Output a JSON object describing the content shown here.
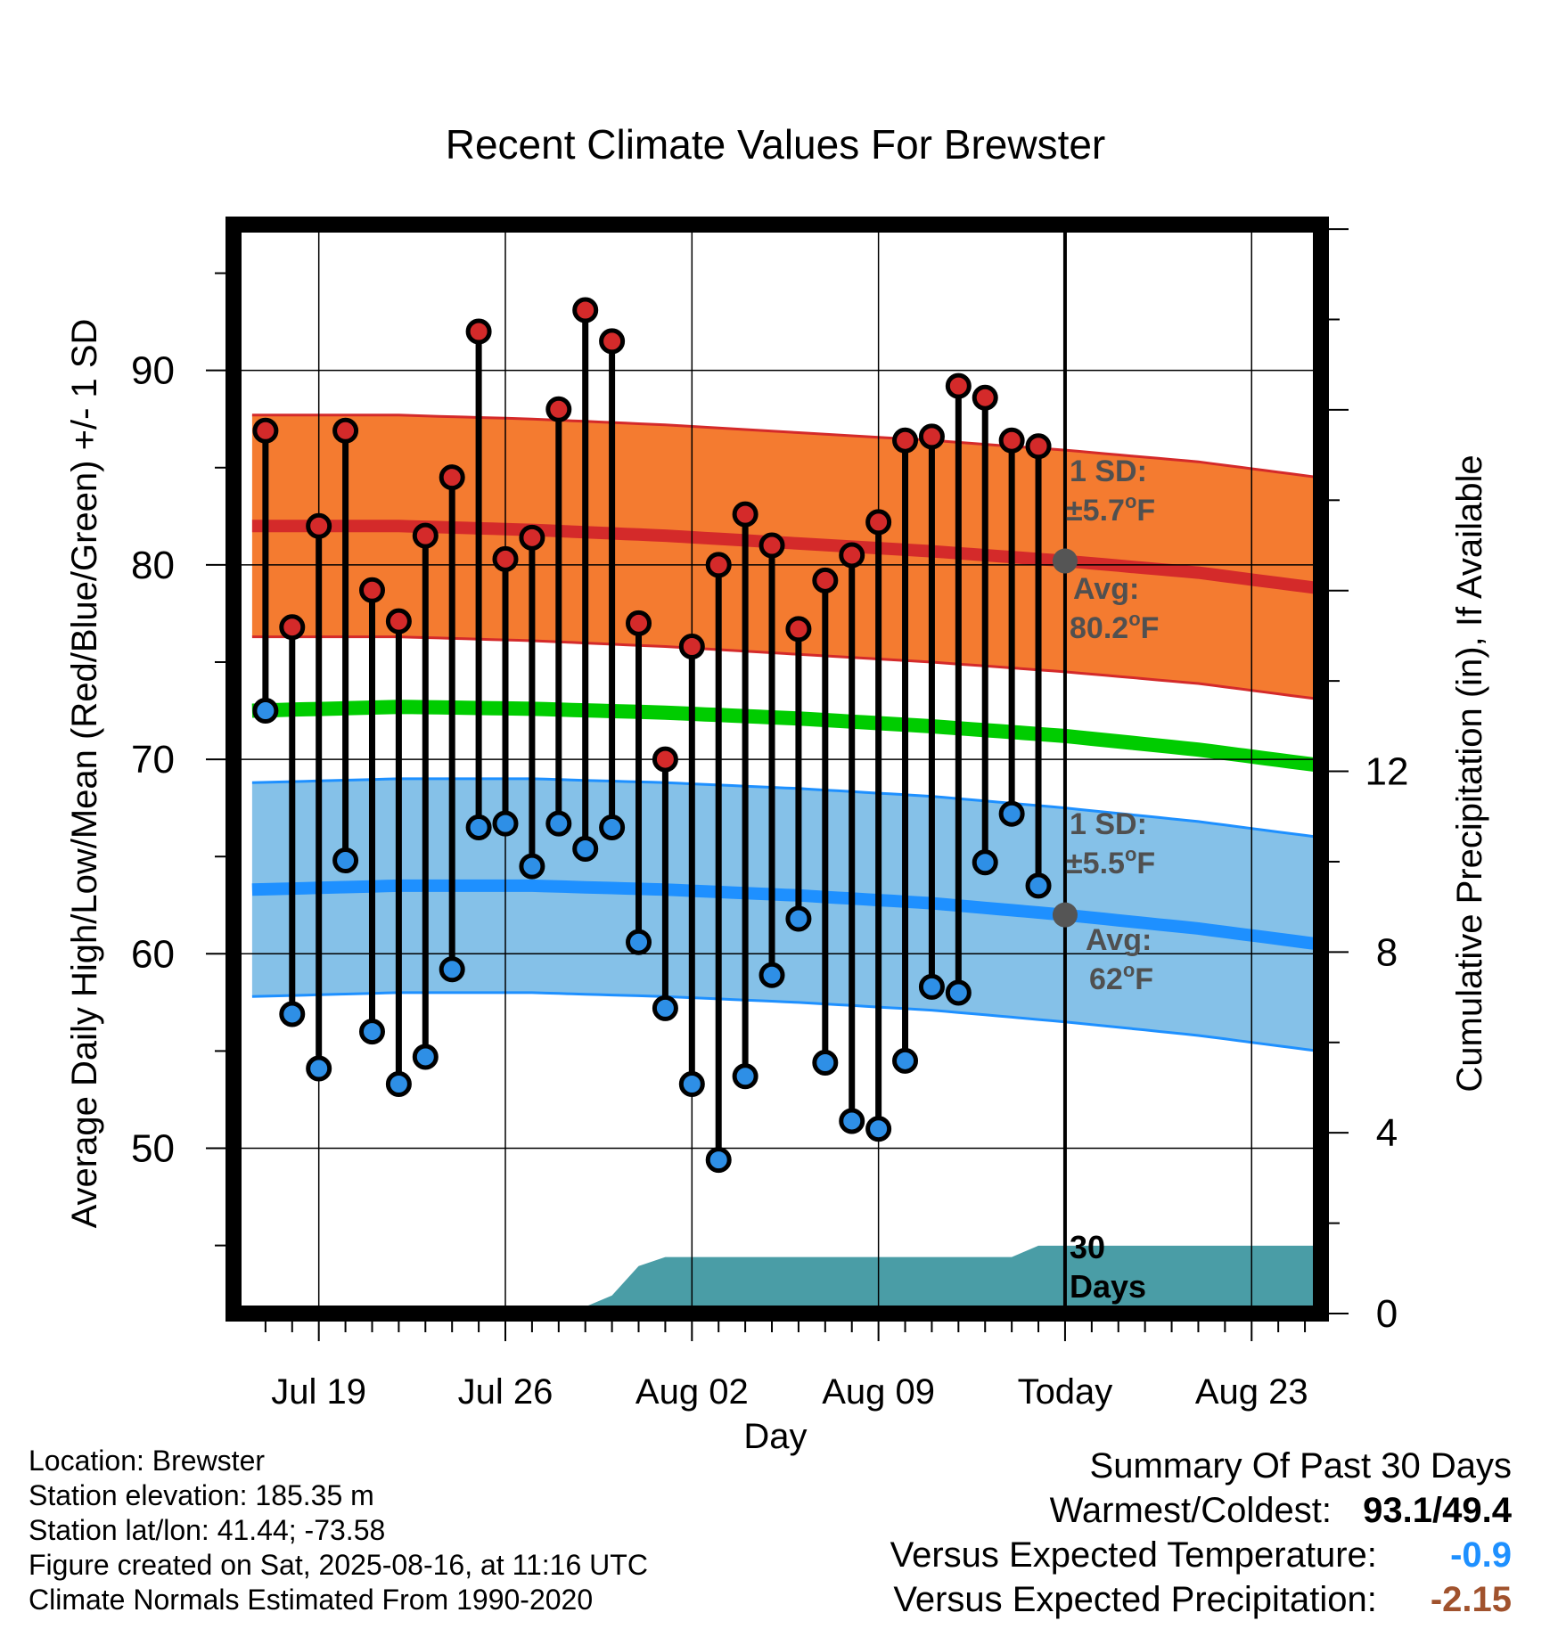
{
  "chart_data": {
    "type": "line",
    "title": "Recent Climate Values For Brewster",
    "xlabel": "Day",
    "ylabel": "Average Daily High/Low/Mean (Red/Blue/Green) +/- 1 SD",
    "y2label": "Cumulative Precipitation (in), If Available",
    "x_ticks": [
      "Jul 19",
      "Jul 26",
      "Aug 02",
      "Aug 09",
      "Today",
      "Aug 23"
    ],
    "y_ticks": [
      "50",
      "60",
      "70",
      "80",
      "90"
    ],
    "y2_ticks": [
      "0",
      "4",
      "8",
      "12"
    ],
    "ylim": [
      41.5,
      97.5
    ],
    "y2lim": [
      0,
      24.1
    ],
    "xlim": [
      -3.2,
      37.6
    ],
    "today_day": 28,
    "days": [
      -2,
      -1,
      0,
      1,
      2,
      3,
      4,
      5,
      6,
      7,
      8,
      9,
      10,
      11,
      12,
      13,
      14,
      15,
      16,
      17,
      18,
      19,
      20,
      21,
      22,
      23,
      24,
      25,
      26,
      27
    ],
    "highs": [
      86.9,
      76.8,
      82.0,
      86.9,
      78.7,
      77.1,
      81.5,
      84.5,
      92.0,
      80.3,
      81.4,
      88.0,
      93.1,
      91.5,
      77.0,
      70.0,
      75.8,
      80.0,
      82.6,
      81.0,
      76.7,
      79.2,
      80.5,
      82.2,
      86.4,
      86.6,
      89.2,
      88.6,
      86.4,
      86.1
    ],
    "lows": [
      72.5,
      56.9,
      54.1,
      64.8,
      56.0,
      53.3,
      54.7,
      59.2,
      66.5,
      66.7,
      64.5,
      66.7,
      65.4,
      66.5,
      60.6,
      57.2,
      53.3,
      49.4,
      53.7,
      58.9,
      61.8,
      54.4,
      51.4,
      51.0,
      54.5,
      58.3,
      58.0,
      64.7,
      67.2,
      63.5
    ],
    "normal_high_x": [
      -2.5,
      3,
      8,
      13,
      18,
      23,
      28,
      33,
      37.5
    ],
    "normal_high_y": [
      82.0,
      82.0,
      81.8,
      81.5,
      81.1,
      80.7,
      80.2,
      79.6,
      78.8
    ],
    "normal_low_x": [
      -2.5,
      3,
      8,
      13,
      18,
      23,
      28,
      33,
      37.5
    ],
    "normal_low_y": [
      63.3,
      63.5,
      63.5,
      63.3,
      63.0,
      62.6,
      62.0,
      61.3,
      60.5
    ],
    "normal_mean_y": [
      72.5,
      72.7,
      72.6,
      72.4,
      72.1,
      71.7,
      71.2,
      70.5,
      69.7
    ],
    "sd_high": 5.7,
    "sd_low": 5.5,
    "precip_x": [
      -2.5,
      6.5,
      7.0,
      10.5,
      11.0,
      13.0,
      14.0,
      20.0,
      24.0,
      26.0,
      26.5,
      27.5,
      28.0,
      37.5
    ],
    "precip_y": [
      0,
      0,
      0.5,
      0.5,
      0.5,
      0.5,
      0.5,
      0.5,
      0.5,
      0.5,
      0.5,
      0.5,
      0.5,
      0.5
    ],
    "precip_cumulative_x": [
      -2.5,
      6.5,
      7.0,
      8.0,
      10.0,
      11.0,
      12.0,
      13.0,
      13.5,
      26.0,
      27.0,
      37.5
    ],
    "precip_cumulative_y": [
      0,
      0,
      0.15,
      0.15,
      0.15,
      0.4,
      1.05,
      1.25,
      1.25,
      1.25,
      1.5,
      1.5
    ],
    "annotations": {
      "sd_high_label_1": "1 SD:",
      "sd_high_label_2": "±5.7",
      "avg_high_label_1": "Avg:",
      "avg_high_label_2": "80.2",
      "sd_low_label_1": "1 SD:",
      "sd_low_label_2": "±5.5",
      "avg_low_label_1": "Avg:",
      "avg_low_label_2": "62",
      "degree_unit": "F",
      "precip_label_1": "30",
      "precip_label_2": "Days"
    },
    "grid": true,
    "legend": "none"
  },
  "info": {
    "location": "Location: Brewster",
    "elevation": "Station elevation: 185.35 m",
    "latlon": "Station lat/lon: 41.44; -73.58",
    "created": "Figure created on Sat, 2025-08-16, at 11:16 UTC",
    "normals": "Climate Normals Estimated From 1990-2020"
  },
  "summary": {
    "title": "Summary Of Past 30 Days",
    "warm_cold_label": "Warmest/Coldest:",
    "warm_value": "93.1",
    "slash": "/",
    "cold_value": "49.4",
    "temp_label": "Versus Expected Temperature:",
    "temp_value": "-0.9",
    "precip_label": "Versus Expected Precipitation:",
    "precip_value": "-2.15"
  },
  "colors": {
    "high_band": "#f47b30",
    "high_line": "#d42a2a",
    "low_band": "#85c1e8",
    "low_line": "#1e90ff",
    "mean_line": "#00cc00",
    "precip": "#4a9da6",
    "high_dot": "#d42a2a",
    "low_dot": "#2e8fe6",
    "annotation": "#505050",
    "temp_anomaly": "#1e90ff",
    "precip_anomaly": "#a0522d"
  }
}
